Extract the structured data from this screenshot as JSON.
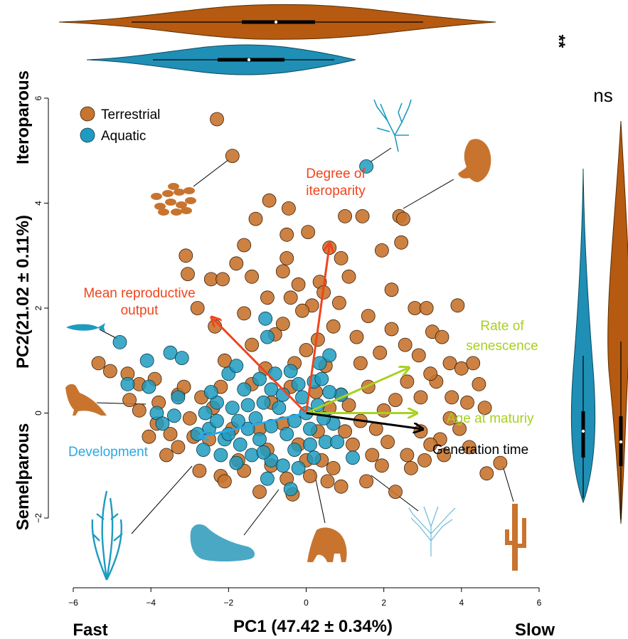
{
  "chart_data": {
    "type": "scatter",
    "title": "",
    "xlabel": "PC1 (47.42 ± 0.34%)",
    "ylabel": "PC2(21.02 ± 0.11%)",
    "x_left_label": "Fast",
    "x_right_label": "Slow",
    "y_top_label": "Iteroparous",
    "y_bottom_label": "Semelparous",
    "xlim": [
      -6,
      6
    ],
    "ylim": [
      -2,
      6
    ],
    "xticks": [
      "−6",
      "−4",
      "−2",
      "0",
      "2",
      "4",
      "6"
    ],
    "yticks": [
      "−2",
      "0",
      "2",
      "4",
      "6"
    ],
    "grid": false,
    "legend": {
      "position": "top-left",
      "entries": [
        "Terrestrial",
        "Aquatic"
      ]
    },
    "colors": {
      "terrestrial": "#c8742f",
      "aquatic": "#1e9bc0",
      "violin_terrestrial": "#b55a10",
      "violin_aquatic": "#1f8fb5"
    },
    "series": [
      {
        "name": "Terrestrial",
        "points": [
          [
            -2.3,
            5.6
          ],
          [
            -1.9,
            4.9
          ],
          [
            -0.95,
            4.05
          ],
          [
            -0.45,
            3.9
          ],
          [
            -1.3,
            3.7
          ],
          [
            0.05,
            3.45
          ],
          [
            -0.5,
            3.4
          ],
          [
            1.0,
            3.75
          ],
          [
            1.45,
            3.75
          ],
          [
            2.4,
            3.75
          ],
          [
            2.5,
            3.7
          ],
          [
            -1.6,
            3.2
          ],
          [
            0.6,
            3.15
          ],
          [
            1.95,
            3.1
          ],
          [
            2.45,
            3.25
          ],
          [
            -3.1,
            3.0
          ],
          [
            -1.8,
            2.85
          ],
          [
            -0.5,
            2.95
          ],
          [
            -3.05,
            2.65
          ],
          [
            -2.45,
            2.55
          ],
          [
            -2.15,
            2.55
          ],
          [
            -1.4,
            2.6
          ],
          [
            -0.6,
            2.7
          ],
          [
            0.35,
            2.5
          ],
          [
            1.1,
            2.6
          ],
          [
            -0.4,
            2.2
          ],
          [
            0.45,
            2.3
          ],
          [
            0.15,
            2.05
          ],
          [
            0.85,
            2.1
          ],
          [
            -2.8,
            2.0
          ],
          [
            -1.0,
            2.2
          ],
          [
            -0.1,
            1.95
          ],
          [
            -2.35,
            1.65
          ],
          [
            -0.8,
            1.5
          ],
          [
            0.3,
            1.4
          ],
          [
            1.3,
            1.45
          ],
          [
            -1.4,
            1.3
          ],
          [
            0.0,
            1.2
          ],
          [
            2.8,
            2.0
          ],
          [
            3.1,
            2.0
          ],
          [
            3.9,
            2.05
          ],
          [
            2.2,
            1.6
          ],
          [
            3.25,
            1.55
          ],
          [
            2.55,
            1.3
          ],
          [
            3.5,
            1.45
          ],
          [
            1.9,
            1.15
          ],
          [
            2.9,
            1.1
          ],
          [
            -2.1,
            1.0
          ],
          [
            -0.3,
            0.95
          ],
          [
            0.5,
            0.9
          ],
          [
            1.4,
            0.95
          ],
          [
            -5.35,
            0.95
          ],
          [
            -5.05,
            0.8
          ],
          [
            -4.6,
            0.75
          ],
          [
            -4.3,
            0.55
          ],
          [
            -3.9,
            0.65
          ],
          [
            3.7,
            0.95
          ],
          [
            4.0,
            0.85
          ],
          [
            4.3,
            0.95
          ],
          [
            -1.05,
            0.85
          ],
          [
            3.35,
            0.6
          ],
          [
            4.45,
            0.55
          ],
          [
            -4.55,
            0.25
          ],
          [
            -4.3,
            0.05
          ],
          [
            -3.8,
            0.2
          ],
          [
            -3.3,
            0.35
          ],
          [
            4.6,
            0.1
          ],
          [
            3.45,
            -0.5
          ],
          [
            3.2,
            -0.6
          ],
          [
            4.2,
            -0.65
          ],
          [
            2.6,
            -0.8
          ],
          [
            3.55,
            -0.8
          ],
          [
            3.05,
            -0.9
          ],
          [
            1.95,
            -1.0
          ],
          [
            2.7,
            -1.05
          ],
          [
            -4.05,
            -0.45
          ],
          [
            -3.85,
            -0.2
          ],
          [
            -3.3,
            -0.65
          ],
          [
            -3.6,
            -0.8
          ],
          [
            -2.75,
            -1.1
          ],
          [
            -2.2,
            -1.2
          ],
          [
            -2.1,
            -1.3
          ],
          [
            -1.6,
            -1.1
          ],
          [
            -1.2,
            -1.5
          ],
          [
            -0.35,
            -1.55
          ],
          [
            0.1,
            -1.2
          ],
          [
            0.9,
            -1.4
          ],
          [
            1.55,
            -1.3
          ],
          [
            4.65,
            -1.15
          ],
          [
            5.0,
            -0.95
          ],
          [
            2.3,
            -1.5
          ],
          [
            -0.9,
            -1.0
          ],
          [
            0.4,
            -0.9
          ],
          [
            1.2,
            -0.6
          ],
          [
            1.8,
            -0.3
          ],
          [
            -1.9,
            -0.3
          ],
          [
            -2.5,
            -0.5
          ],
          [
            -0.2,
            -0.6
          ],
          [
            -1.0,
            -0.7
          ],
          [
            0.7,
            -1.05
          ],
          [
            2.1,
            -0.55
          ],
          [
            -3.0,
            -0.1
          ],
          [
            -2.7,
            0.3
          ],
          [
            2.3,
            0.25
          ],
          [
            0.9,
            0.35
          ],
          [
            1.6,
            0.5
          ],
          [
            2.95,
            0.3
          ],
          [
            3.75,
            0.3
          ],
          [
            3.95,
            -0.3
          ],
          [
            -2.2,
            0.5
          ],
          [
            -1.4,
            0.55
          ],
          [
            -0.4,
            0.5
          ],
          [
            0.25,
            0.4
          ],
          [
            1.1,
            0.15
          ],
          [
            2.6,
            0.6
          ],
          [
            3.2,
            0.75
          ],
          [
            -0.6,
            1.7
          ],
          [
            0.7,
            1.65
          ],
          [
            -1.6,
            1.9
          ],
          [
            1.6,
            1.85
          ],
          [
            2.2,
            2.35
          ],
          [
            -0.2,
            2.45
          ],
          [
            0.9,
            2.95
          ],
          [
            -3.5,
            -0.4
          ],
          [
            -2.9,
            -0.45
          ],
          [
            3.7,
            -0.1
          ],
          [
            4.15,
            0.2
          ],
          [
            -1.75,
            -0.9
          ],
          [
            -0.5,
            -1.25
          ],
          [
            0.55,
            -1.3
          ],
          [
            1.7,
            -0.8
          ],
          [
            2.95,
            -0.35
          ],
          [
            -3.15,
            0.5
          ],
          [
            0.0,
            -0.9
          ],
          [
            -1.2,
            -0.3
          ],
          [
            0.3,
            -0.35
          ],
          [
            1.0,
            -0.35
          ],
          [
            1.4,
            -0.15
          ],
          [
            -0.6,
            -0.2
          ],
          [
            -2.4,
            0.1
          ],
          [
            2.0,
            0.05
          ],
          [
            -0.9,
            0.2
          ],
          [
            0.6,
            0.1
          ]
        ]
      },
      {
        "name": "Aquatic",
        "points": [
          [
            1.55,
            4.7
          ],
          [
            -4.8,
            1.35
          ],
          [
            -1.05,
            1.8
          ],
          [
            -1.0,
            1.45
          ],
          [
            0.6,
            1.1
          ],
          [
            -3.5,
            1.15
          ],
          [
            -3.2,
            1.05
          ],
          [
            -4.1,
            1.0
          ],
          [
            -2.0,
            0.75
          ],
          [
            -1.8,
            0.9
          ],
          [
            -4.6,
            0.55
          ],
          [
            -4.05,
            0.5
          ],
          [
            -3.3,
            0.3
          ],
          [
            -3.85,
            0.0
          ],
          [
            -3.4,
            -0.05
          ],
          [
            -3.7,
            -0.2
          ],
          [
            -2.65,
            -0.7
          ],
          [
            -2.5,
            -0.3
          ],
          [
            -2.8,
            -0.4
          ],
          [
            -2.1,
            -0.5
          ],
          [
            -1.7,
            -0.6
          ],
          [
            -1.5,
            -0.3
          ],
          [
            -1.3,
            -0.1
          ],
          [
            -1.1,
            0.2
          ],
          [
            -0.9,
            0.45
          ],
          [
            -0.7,
            0.1
          ],
          [
            -0.5,
            -0.4
          ],
          [
            -0.3,
            -0.15
          ],
          [
            -0.1,
            0.3
          ],
          [
            0.1,
            -0.3
          ],
          [
            0.3,
            0.15
          ],
          [
            0.5,
            -0.55
          ],
          [
            0.7,
            -0.2
          ],
          [
            0.9,
            0.35
          ],
          [
            1.2,
            -0.85
          ],
          [
            -1.9,
            0.1
          ],
          [
            -2.3,
            0.2
          ],
          [
            -1.6,
            0.45
          ],
          [
            -1.2,
            0.65
          ],
          [
            -0.8,
            0.75
          ],
          [
            -0.4,
            0.8
          ],
          [
            -0.2,
            0.55
          ],
          [
            0.2,
            0.6
          ],
          [
            0.4,
            0.65
          ],
          [
            -1.4,
            -0.8
          ],
          [
            -0.9,
            -0.9
          ],
          [
            -0.6,
            -1.0
          ],
          [
            -0.2,
            -1.05
          ],
          [
            0.2,
            -0.85
          ],
          [
            -1.0,
            -1.25
          ],
          [
            -0.4,
            -1.45
          ],
          [
            -1.8,
            -0.95
          ],
          [
            -2.2,
            -0.8
          ],
          [
            -2.6,
            0.0
          ],
          [
            -2.3,
            -0.15
          ],
          [
            -1.2,
            -0.5
          ],
          [
            -0.9,
            -0.25
          ],
          [
            -0.6,
            0.35
          ],
          [
            0.0,
            0.0
          ],
          [
            0.6,
            0.4
          ],
          [
            -1.5,
            0.15
          ],
          [
            -0.3,
            -0.7
          ],
          [
            -1.1,
            -0.75
          ],
          [
            0.1,
            -0.6
          ],
          [
            0.45,
            -0.1
          ],
          [
            -2.0,
            -0.4
          ],
          [
            -1.75,
            -0.15
          ],
          [
            0.8,
            -0.55
          ],
          [
            -2.45,
            0.4
          ],
          [
            0.35,
            0.95
          ]
        ]
      }
    ],
    "loadings": [
      {
        "name": "Degree of\niteroparity",
        "color": "#f0441c",
        "end": [
          0.6,
          3.2
        ]
      },
      {
        "name": "Mean reproductive\noutput",
        "color": "#f0441c",
        "end": [
          -2.4,
          1.8
        ]
      },
      {
        "name": "Rate of\nsenescence",
        "color": "#a8d120",
        "end": [
          2.6,
          0.85
        ]
      },
      {
        "name": "Age at maturiy",
        "color": "#a8d120",
        "end": [
          2.8,
          0.0
        ]
      },
      {
        "name": "Generation time",
        "color": "#000000",
        "end": [
          2.95,
          -0.3
        ]
      },
      {
        "name": "Development",
        "color": "#2aa8e6",
        "end": [
          -2.7,
          -0.45
        ]
      }
    ],
    "annotations": {
      "top_violin_significance": "**",
      "right_violin_significance": "ns"
    },
    "silhouettes": [
      "coral-icon",
      "hippo-icon",
      "seeds-icon",
      "fish-icon",
      "bird-icon",
      "kelp-icon",
      "seal-icon",
      "gorilla-icon",
      "sea-fan-icon",
      "cactus-icon"
    ]
  }
}
